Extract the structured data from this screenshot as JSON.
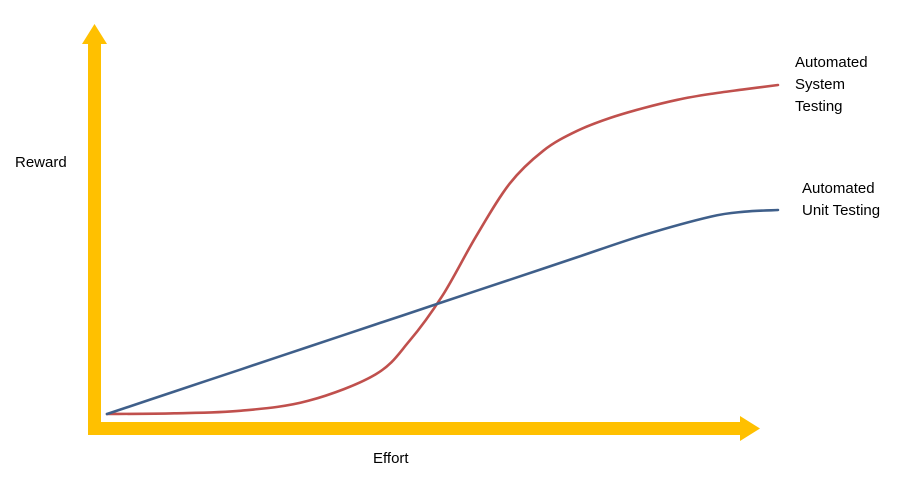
{
  "chart_data": {
    "type": "line",
    "xlabel": "Effort",
    "ylabel": "Reward",
    "xlim": [
      0,
      100
    ],
    "ylim": [
      0,
      100
    ],
    "grid": false,
    "axis_color": "#FFC000",
    "series": [
      {
        "name_lines": [
          "Automated",
          "System",
          "Testing"
        ],
        "color": "#C0504D",
        "x": [
          0,
          10,
          20,
          30,
          40,
          45,
          50,
          55,
          60,
          65,
          70,
          75,
          80,
          85,
          90,
          95,
          100
        ],
        "y": [
          0,
          0.2,
          1,
          4,
          12,
          22,
          36,
          54,
          70,
          80,
          86,
          90,
          93,
          95.5,
          97.3,
          98.7,
          100
        ]
      },
      {
        "name_lines": [
          "Automated",
          "Unit Testing"
        ],
        "color": "#3F5F8A",
        "x": [
          0,
          10,
          20,
          30,
          40,
          50,
          60,
          70,
          80,
          90,
          95,
          100
        ],
        "y": [
          0,
          6.8,
          13.6,
          20.4,
          27.2,
          34,
          40.8,
          47.6,
          54.4,
          60,
          61.5,
          62
        ]
      }
    ]
  }
}
